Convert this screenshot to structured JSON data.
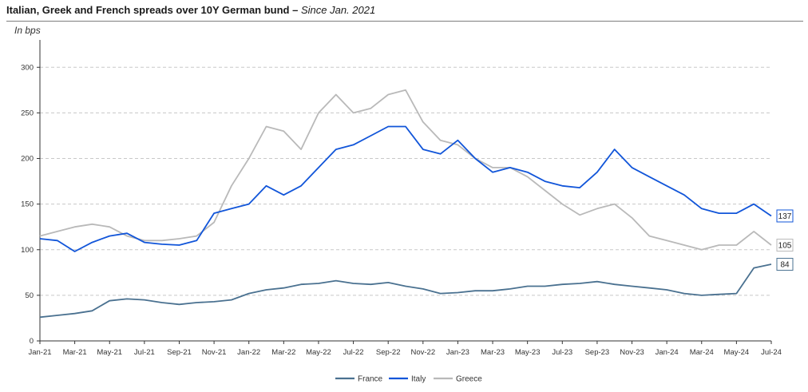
{
  "title": {
    "bold": "Italian, Greek and French spreads over 10Y German bund –",
    "italic": " Since Jan. 2021"
  },
  "unit_label": "In bps",
  "colors": {
    "France": "#4a7190",
    "Italy": "#1155d9",
    "Greece": "#b9b9b9",
    "grid": "#c8c8c8",
    "axis": "#333333"
  },
  "chart_data": {
    "type": "line",
    "title": "Italian, Greek and French spreads over 10Y German bund – Since Jan. 2021",
    "ylabel": "In bps",
    "xlabel": "",
    "ylim": [
      0,
      330
    ],
    "yticks": [
      0,
      50,
      100,
      150,
      200,
      250,
      300
    ],
    "grid": "horizontal dashed",
    "legend": "bottom-center",
    "x": [
      "Jan-21",
      "Feb-21",
      "Mar-21",
      "Apr-21",
      "May-21",
      "Jun-21",
      "Jul-21",
      "Aug-21",
      "Sep-21",
      "Oct-21",
      "Nov-21",
      "Dec-21",
      "Jan-22",
      "Feb-22",
      "Mar-22",
      "Apr-22",
      "May-22",
      "Jun-22",
      "Jul-22",
      "Aug-22",
      "Sep-22",
      "Oct-22",
      "Nov-22",
      "Dec-22",
      "Jan-23",
      "Feb-23",
      "Mar-23",
      "Apr-23",
      "May-23",
      "Jun-23",
      "Jul-23",
      "Aug-23",
      "Sep-23",
      "Oct-23",
      "Nov-23",
      "Dec-23",
      "Jan-24",
      "Feb-24",
      "Mar-24",
      "Apr-24",
      "May-24",
      "Jun-24",
      "Jul-24"
    ],
    "xtick_labels": [
      "Jan-21",
      "Mar-21",
      "May-21",
      "Jul-21",
      "Sep-21",
      "Nov-21",
      "Jan-22",
      "Mar-22",
      "May-22",
      "Jul-22",
      "Sep-22",
      "Nov-22",
      "Jan-23",
      "Mar-23",
      "May-23",
      "Jul-23",
      "Sep-23",
      "Nov-23",
      "Jan-24",
      "Mar-24",
      "May-24",
      "Jul-24"
    ],
    "series": [
      {
        "name": "France",
        "values": [
          26,
          28,
          30,
          33,
          44,
          46,
          45,
          42,
          40,
          42,
          43,
          45,
          52,
          56,
          58,
          62,
          63,
          66,
          63,
          62,
          64,
          60,
          57,
          52,
          53,
          55,
          55,
          57,
          60,
          60,
          62,
          63,
          65,
          62,
          60,
          58,
          56,
          52,
          50,
          51,
          52,
          80,
          84
        ],
        "end_label": "84"
      },
      {
        "name": "Italy",
        "values": [
          112,
          110,
          98,
          108,
          115,
          118,
          108,
          106,
          105,
          110,
          140,
          145,
          150,
          170,
          160,
          170,
          190,
          210,
          215,
          225,
          235,
          235,
          210,
          205,
          220,
          200,
          185,
          190,
          185,
          175,
          170,
          168,
          185,
          210,
          190,
          180,
          170,
          160,
          145,
          140,
          140,
          150,
          137
        ],
        "end_label": "137"
      },
      {
        "name": "Greece",
        "values": [
          115,
          120,
          125,
          128,
          125,
          115,
          110,
          110,
          112,
          115,
          130,
          170,
          200,
          235,
          230,
          210,
          250,
          270,
          250,
          255,
          270,
          275,
          240,
          220,
          215,
          200,
          190,
          190,
          180,
          165,
          150,
          138,
          145,
          150,
          135,
          115,
          110,
          105,
          100,
          105,
          105,
          120,
          105
        ],
        "end_label": "105"
      }
    ]
  }
}
